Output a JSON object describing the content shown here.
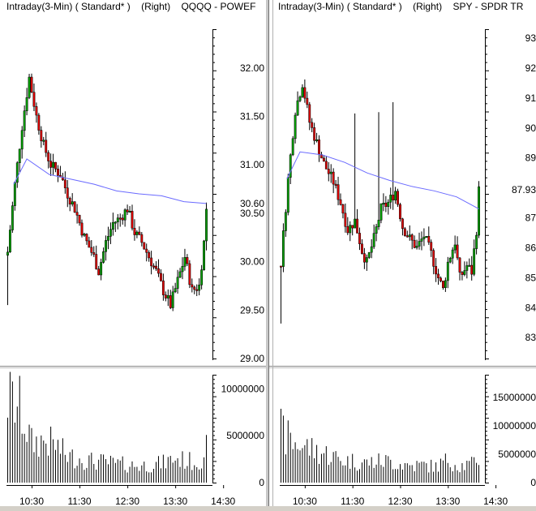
{
  "colors": {
    "up": "#00a000",
    "down": "#e00000",
    "wick": "#000000",
    "ma": "#6a6aff",
    "volume": "#000000",
    "divider": "#c8c8c8",
    "divider_dark": "#707070"
  },
  "panels": [
    {
      "id": "qqqq",
      "header": {
        "interval": "Intraday(3-Min)",
        "style": "( Standard* )",
        "axis_side": "(Right)",
        "symbol": "QQQQ - POWEF"
      },
      "price_axis": {
        "min": 29.0,
        "max": 32.4,
        "tick_labels": [
          "32.00",
          "31.50",
          "31.00",
          "30.50",
          "30.00",
          "29.50",
          "29.00"
        ],
        "last_price_label": "30.60"
      },
      "volume_axis": {
        "min": 0,
        "max": 11500000,
        "tick_labels": [
          "10000000",
          "5000000",
          "0"
        ]
      },
      "x_labels": [
        "10:30",
        "11:30",
        "12:30",
        "13:30",
        "14:30"
      ]
    },
    {
      "id": "spy",
      "header": {
        "interval": "Intraday(3-Min)",
        "style": "( Standard* )",
        "axis_side": "(Right)",
        "symbol": "SPY - SPDR TR"
      },
      "price_axis": {
        "min": 82.3,
        "max": 93.3,
        "tick_labels": [
          "93",
          "92",
          "91",
          "90",
          "89",
          "87.93",
          "87",
          "86",
          "85",
          "84",
          "83"
        ],
        "last_price_label": "87.93"
      },
      "volume_axis": {
        "min": 0,
        "max": 19000000,
        "tick_labels": [
          "15000000",
          "10000000",
          "5000000",
          "0"
        ]
      },
      "x_labels": [
        "10:30",
        "11:30",
        "12:30",
        "13:30",
        "14:30"
      ]
    }
  ],
  "chart_data": [
    {
      "type": "candlestick",
      "title": "QQQQ - POWEF",
      "interval": "3-Min",
      "ylim": [
        29.0,
        32.4
      ],
      "x_tick_labels": [
        "10:30",
        "11:30",
        "12:30",
        "13:30",
        "14:30"
      ],
      "moving_average": [
        31.06,
        30.9,
        30.85,
        30.8,
        30.73,
        30.7,
        30.68,
        30.62,
        30.6
      ],
      "anchors": {
        "close": [
          [
            0,
            30.1
          ],
          [
            3,
            30.8
          ],
          [
            6,
            31.4
          ],
          [
            9,
            31.9
          ],
          [
            12,
            31.5
          ],
          [
            15,
            31.2
          ],
          [
            18,
            31.0
          ],
          [
            22,
            30.9
          ],
          [
            25,
            30.7
          ],
          [
            28,
            30.55
          ],
          [
            32,
            30.25
          ],
          [
            36,
            30.05
          ],
          [
            38,
            29.9
          ],
          [
            41,
            30.2
          ],
          [
            44,
            30.4
          ],
          [
            47,
            30.45
          ],
          [
            50,
            30.55
          ],
          [
            53,
            30.3
          ],
          [
            56,
            30.2
          ],
          [
            59,
            30.05
          ],
          [
            62,
            29.9
          ],
          [
            65,
            29.7
          ],
          [
            68,
            29.55
          ],
          [
            71,
            29.8
          ],
          [
            74,
            30.05
          ],
          [
            77,
            29.7
          ],
          [
            80,
            29.75
          ],
          [
            82,
            30.2
          ],
          [
            83,
            30.55
          ]
        ],
        "volume": [
          [
            0,
            9000000
          ],
          [
            5,
            8000000
          ],
          [
            10,
            4200000
          ],
          [
            15,
            4500000
          ],
          [
            20,
            4000000
          ],
          [
            25,
            2800000
          ],
          [
            30,
            2600000
          ],
          [
            35,
            2300000
          ],
          [
            40,
            2200000
          ],
          [
            45,
            2000000
          ],
          [
            50,
            1900000
          ],
          [
            55,
            1800000
          ],
          [
            60,
            1900000
          ],
          [
            65,
            2100000
          ],
          [
            70,
            2600000
          ],
          [
            75,
            2300000
          ],
          [
            80,
            2200000
          ],
          [
            83,
            3800000
          ]
        ]
      }
    },
    {
      "type": "candlestick",
      "title": "SPY - SPDR TR",
      "interval": "3-Min",
      "ylim": [
        82.3,
        93.3
      ],
      "x_tick_labels": [
        "10:30",
        "11:30",
        "12:30",
        "13:30",
        "14:30"
      ],
      "moving_average": [
        89.2,
        89.1,
        88.85,
        88.5,
        88.25,
        88.05,
        87.9,
        87.7,
        87.3
      ],
      "anchors": {
        "close": [
          [
            0,
            85.5
          ],
          [
            3,
            88.3
          ],
          [
            6,
            90.6
          ],
          [
            9,
            91.5
          ],
          [
            12,
            90.2
          ],
          [
            15,
            89.5
          ],
          [
            18,
            88.8
          ],
          [
            22,
            88.2
          ],
          [
            25,
            87.5
          ],
          [
            28,
            86.6
          ],
          [
            31,
            86.9
          ],
          [
            34,
            85.9
          ],
          [
            36,
            85.5
          ],
          [
            39,
            86.3
          ],
          [
            42,
            87.3
          ],
          [
            45,
            87.5
          ],
          [
            48,
            87.9
          ],
          [
            51,
            86.7
          ],
          [
            54,
            86.3
          ],
          [
            57,
            86.0
          ],
          [
            60,
            86.4
          ],
          [
            63,
            85.8
          ],
          [
            66,
            85.0
          ],
          [
            68,
            84.6
          ],
          [
            70,
            85.5
          ],
          [
            73,
            86.2
          ],
          [
            75,
            85.0
          ],
          [
            78,
            85.4
          ],
          [
            80,
            85.2
          ],
          [
            82,
            86.6
          ],
          [
            83,
            87.9
          ]
        ],
        "volume": [
          [
            0,
            9000000
          ],
          [
            5,
            7000000
          ],
          [
            10,
            6500000
          ],
          [
            15,
            5500000
          ],
          [
            20,
            5000000
          ],
          [
            25,
            4000000
          ],
          [
            30,
            3800000
          ],
          [
            35,
            3500000
          ],
          [
            40,
            3700000
          ],
          [
            45,
            3800000
          ],
          [
            50,
            3300000
          ],
          [
            55,
            3000000
          ],
          [
            60,
            3100000
          ],
          [
            65,
            2800000
          ],
          [
            70,
            4000000
          ],
          [
            75,
            3000000
          ],
          [
            80,
            3200000
          ],
          [
            83,
            4500000
          ]
        ]
      }
    }
  ]
}
